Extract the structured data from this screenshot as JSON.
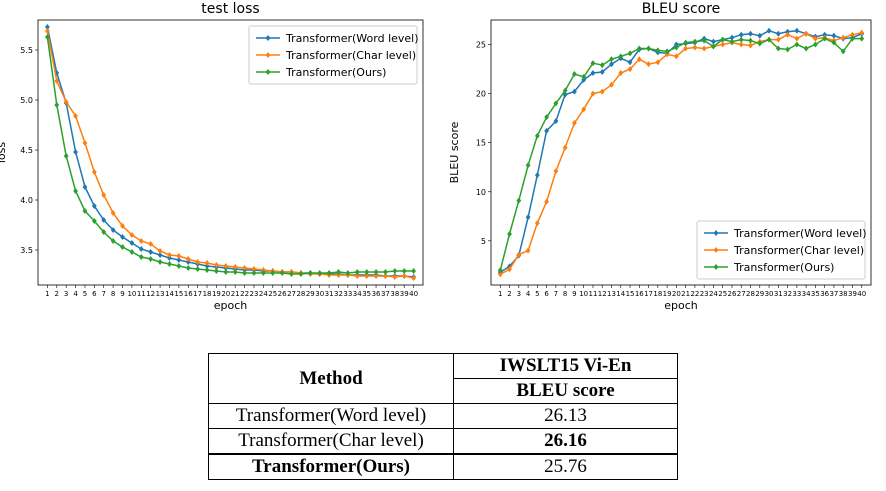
{
  "chart_data": [
    {
      "type": "line",
      "title": "test loss",
      "xlabel": "epoch",
      "ylabel": "loss",
      "x": [
        1,
        2,
        3,
        4,
        5,
        6,
        7,
        8,
        9,
        10,
        11,
        12,
        13,
        14,
        15,
        16,
        17,
        18,
        19,
        20,
        21,
        22,
        23,
        24,
        25,
        26,
        27,
        28,
        29,
        30,
        31,
        32,
        33,
        34,
        35,
        36,
        37,
        38,
        39,
        40
      ],
      "xlim": [
        0,
        41
      ],
      "ylim": [
        3.15,
        5.8
      ],
      "yticks": [
        3.5,
        4.0,
        4.5,
        5.0,
        5.5
      ],
      "ytick_labels": [
        "3.5",
        "4.0",
        "4.5",
        "5.0",
        "5.5"
      ],
      "legend_position": "top-right",
      "series": [
        {
          "name": "Transformer(Word level)",
          "color": "#1f77b4",
          "values": [
            5.73,
            5.27,
            4.97,
            4.48,
            4.13,
            3.94,
            3.8,
            3.7,
            3.63,
            3.57,
            3.51,
            3.48,
            3.45,
            3.42,
            3.4,
            3.38,
            3.36,
            3.34,
            3.33,
            3.32,
            3.31,
            3.3,
            3.3,
            3.29,
            3.29,
            3.28,
            3.28,
            3.27,
            3.27,
            3.26,
            3.26,
            3.26,
            3.25,
            3.25,
            3.25,
            3.25,
            3.24,
            3.24,
            3.24,
            3.23
          ]
        },
        {
          "name": "Transformer(Char level)",
          "color": "#ff7f0e",
          "values": [
            5.69,
            5.19,
            4.98,
            4.84,
            4.57,
            4.28,
            4.05,
            3.87,
            3.74,
            3.65,
            3.59,
            3.56,
            3.49,
            3.45,
            3.44,
            3.41,
            3.38,
            3.37,
            3.35,
            3.34,
            3.33,
            3.32,
            3.31,
            3.3,
            3.29,
            3.28,
            3.28,
            3.27,
            3.26,
            3.26,
            3.25,
            3.25,
            3.25,
            3.24,
            3.24,
            3.24,
            3.24,
            3.23,
            3.24,
            3.22
          ]
        },
        {
          "name": "Transformer(Ours)",
          "color": "#2ca02c",
          "values": [
            5.63,
            4.95,
            4.44,
            4.09,
            3.89,
            3.79,
            3.68,
            3.59,
            3.53,
            3.48,
            3.43,
            3.41,
            3.38,
            3.36,
            3.34,
            3.32,
            3.31,
            3.3,
            3.29,
            3.28,
            3.28,
            3.27,
            3.27,
            3.27,
            3.27,
            3.27,
            3.26,
            3.26,
            3.27,
            3.27,
            3.27,
            3.28,
            3.27,
            3.28,
            3.28,
            3.28,
            3.28,
            3.29,
            3.29,
            3.29
          ]
        }
      ]
    },
    {
      "type": "line",
      "title": "BLEU score",
      "xlabel": "epoch",
      "ylabel": "BLEU score",
      "x": [
        1,
        2,
        3,
        4,
        5,
        6,
        7,
        8,
        9,
        10,
        11,
        12,
        13,
        14,
        15,
        16,
        17,
        18,
        19,
        20,
        21,
        22,
        23,
        24,
        25,
        26,
        27,
        28,
        29,
        30,
        31,
        32,
        33,
        34,
        35,
        36,
        37,
        38,
        39,
        40
      ],
      "xlim": [
        0,
        41
      ],
      "ylim": [
        0.5,
        27.5
      ],
      "yticks": [
        5,
        10,
        15,
        20,
        25
      ],
      "ytick_labels": [
        "5",
        "10",
        "15",
        "20",
        "25"
      ],
      "legend_position": "bottom-right",
      "series": [
        {
          "name": "Transformer(Word level)",
          "color": "#1f77b4",
          "values": [
            1.8,
            2.4,
            3.5,
            7.4,
            11.7,
            16.2,
            17.2,
            19.9,
            20.2,
            21.4,
            22.1,
            22.2,
            23.0,
            23.6,
            23.2,
            24.5,
            24.6,
            24.2,
            24.1,
            25.0,
            25.1,
            25.2,
            25.6,
            25.3,
            25.5,
            25.7,
            26.0,
            26.1,
            25.9,
            26.4,
            26.1,
            26.3,
            26.4,
            26.1,
            25.8,
            26.0,
            25.9,
            25.6,
            25.7,
            26.1
          ]
        },
        {
          "name": "Transformer(Char level)",
          "color": "#ff7f0e",
          "values": [
            1.6,
            2.1,
            3.6,
            4.0,
            6.8,
            9.0,
            12.1,
            14.5,
            17.0,
            18.4,
            20.0,
            20.2,
            20.9,
            22.1,
            22.5,
            23.5,
            23.0,
            23.2,
            24.0,
            23.8,
            24.6,
            24.7,
            24.6,
            24.8,
            25.0,
            25.2,
            25.0,
            24.9,
            25.3,
            25.5,
            25.5,
            26.0,
            25.6,
            26.1,
            25.6,
            25.7,
            25.4,
            25.7,
            26.0,
            26.2
          ]
        },
        {
          "name": "Transformer(Ours)",
          "color": "#2ca02c",
          "values": [
            2.0,
            5.7,
            9.1,
            12.7,
            15.7,
            17.6,
            19.0,
            20.3,
            22.0,
            21.7,
            23.1,
            22.9,
            23.5,
            23.8,
            24.1,
            24.6,
            24.6,
            24.4,
            24.3,
            24.7,
            25.2,
            25.3,
            25.4,
            24.8,
            25.5,
            25.3,
            25.5,
            25.4,
            25.1,
            25.5,
            24.6,
            24.5,
            25.0,
            24.6,
            25.0,
            25.6,
            25.2,
            24.3,
            25.6,
            25.6
          ]
        }
      ]
    },
    {
      "type": "table",
      "headers": {
        "method": "Method",
        "dataset": "IWSLT15 Vi-En",
        "metric": "BLEU score"
      },
      "rows": [
        {
          "method": "Transformer(Word level)",
          "score": "26.13"
        },
        {
          "method": "Transformer(Char level)",
          "score": "26.16"
        },
        {
          "method": "Transformer(Ours)",
          "score": "25.76"
        }
      ]
    }
  ]
}
